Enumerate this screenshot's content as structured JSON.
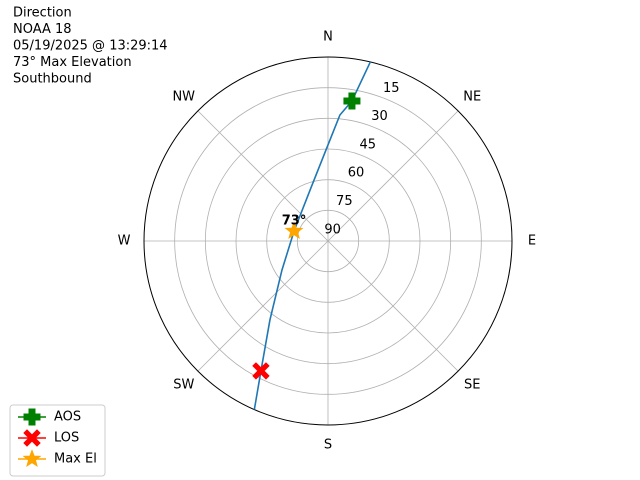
{
  "chart_data": {
    "type": "polar",
    "title_lines": [
      "Direction",
      "NOAA 18",
      "05/19/2025 @ 13:29:14",
      "73° Max Elevation",
      "Southbound"
    ],
    "xlim": [
      0,
      360
    ],
    "xticks": [
      {
        "value": 0,
        "label": "N"
      },
      {
        "value": 45,
        "label": "NE"
      },
      {
        "value": 90,
        "label": "E"
      },
      {
        "value": 135,
        "label": "SE"
      },
      {
        "value": 180,
        "label": "S"
      },
      {
        "value": 225,
        "label": "SW"
      },
      {
        "value": 270,
        "label": "W"
      },
      {
        "value": 315,
        "label": "NW"
      }
    ],
    "ylim": [
      90,
      0
    ],
    "yticks": [
      15,
      30,
      45,
      60,
      75,
      90
    ],
    "grid": true,
    "legend": "lower left",
    "path": {
      "color": "#1f77b4",
      "x": [
        13.3,
        9.7,
        5.4,
        358.7,
        340.6,
        286.4,
        237.8,
        216.3,
        207.3,
        203.6
      ],
      "values": [
        0,
        20.5,
        28.1,
        45.5,
        63.6,
        72.7,
        63.4,
        42,
        18.5,
        0
      ]
    },
    "series": [
      {
        "name": "AOS",
        "color": "#008000",
        "marker": "plus",
        "x": [
          9.7
        ],
        "values": [
          20.5
        ]
      },
      {
        "name": "LOS",
        "color": "#ff0000",
        "marker": "x",
        "x": [
          207.3
        ],
        "values": [
          18.5
        ]
      },
      {
        "name": "Max El",
        "color": "#ffa500",
        "marker": "star",
        "x": [
          286.4
        ],
        "values": [
          72.7
        ]
      }
    ],
    "annotations": [
      {
        "text": "73°",
        "series": 2
      }
    ]
  }
}
